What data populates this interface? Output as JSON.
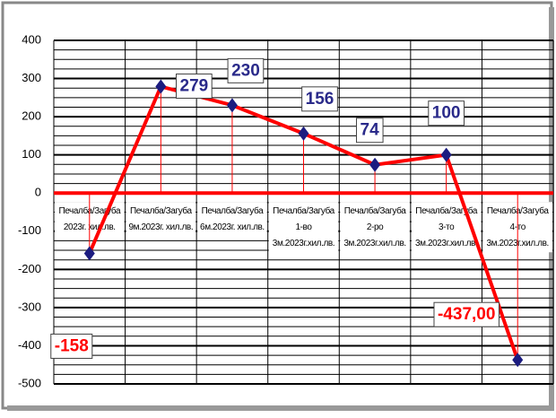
{
  "chart_data": {
    "type": "line",
    "categories": [
      [
        "Печалба/Загуба",
        "2023г. хил.лв."
      ],
      [
        "Печалба/Загуба",
        "9м.2023г. хил.лв."
      ],
      [
        "Печалба/Загуба",
        "6м.2023г. хил.лв."
      ],
      [
        "Печалба/Загуба",
        "1-во",
        "3м.2023г.хил.лв."
      ],
      [
        "Печалба/Загуба",
        "2-ро",
        "3м.2023г.хил.лв."
      ],
      [
        "Печалба/Загуба",
        "3-то",
        "3м.2023г.хил.лв."
      ],
      [
        "Печалба/Загуба",
        "4-то",
        "3м.2023г.хил.лв."
      ]
    ],
    "values": [
      -158,
      279,
      230,
      156,
      74,
      100,
      -437
    ],
    "value_labels": [
      "-158",
      "279",
      "230",
      "156",
      "74",
      "100",
      "-437,00"
    ],
    "color": "#ff0000",
    "marker_color": "#1c1c80",
    "ylim": [
      -500,
      400
    ],
    "yticks": [
      -500,
      -400,
      -300,
      -200,
      -100,
      0,
      100,
      200,
      300,
      400
    ],
    "grid": true
  }
}
